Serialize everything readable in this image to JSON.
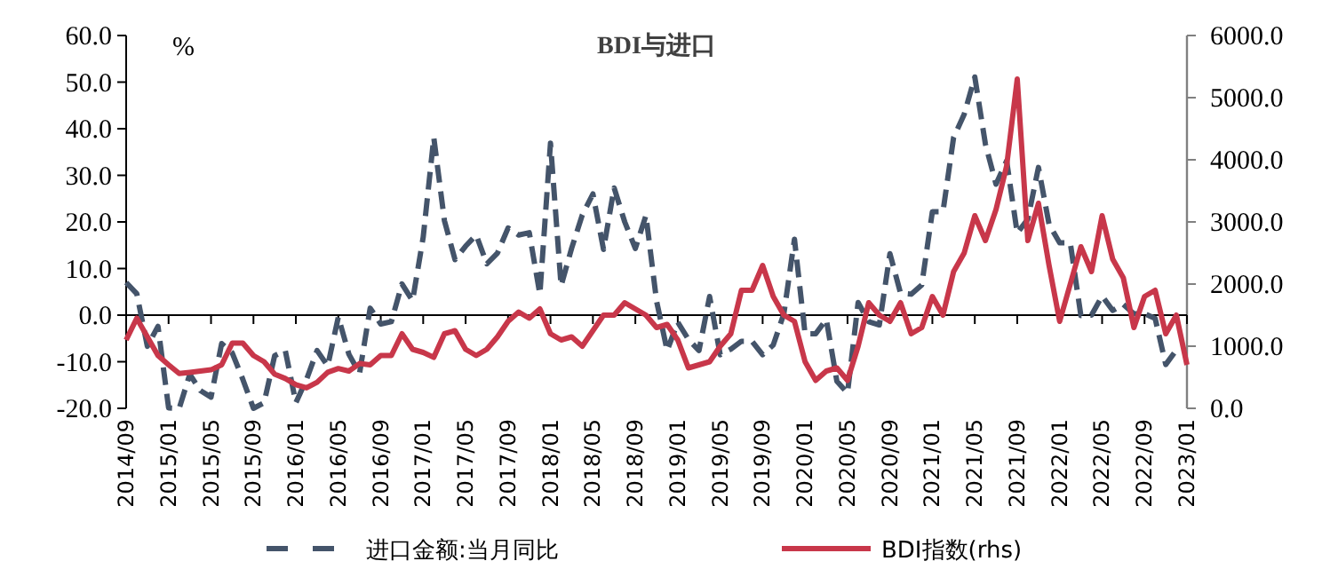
{
  "chart_data": {
    "type": "line",
    "title": "BDI与进口",
    "ylabel": "%",
    "categories": [
      "2014/09",
      null,
      null,
      null,
      "2015/01",
      null,
      null,
      null,
      "2015/05",
      null,
      null,
      null,
      "2015/09",
      null,
      null,
      null,
      "2016/01",
      null,
      null,
      null,
      "2016/05",
      null,
      null,
      null,
      "2016/09",
      null,
      null,
      null,
      "2017/01",
      null,
      null,
      null,
      "2017/05",
      null,
      null,
      null,
      "2017/09",
      null,
      null,
      null,
      "2018/01",
      null,
      null,
      null,
      "2018/05",
      null,
      null,
      null,
      "2018/09",
      null,
      null,
      null,
      "2019/01",
      null,
      null,
      null,
      "2019/05",
      null,
      null,
      null,
      "2019/09",
      null,
      null,
      null,
      "2020/01",
      null,
      null,
      null,
      "2020/05",
      null,
      null,
      null,
      "2020/09",
      null,
      null,
      null,
      "2021/01",
      null,
      null,
      null,
      "2021/05",
      null,
      null,
      null,
      "2021/09",
      null,
      null,
      null,
      "2022/01",
      null,
      null,
      null,
      "2022/05",
      null,
      null,
      null,
      "2022/09",
      null,
      null,
      null,
      "2023/01"
    ],
    "series": [
      {
        "name": "进口金额:当月同比",
        "color": "#44546a",
        "line_style": "dashed",
        "values": [
          7.0,
          4.6,
          -6.7,
          -2.4,
          -19.9,
          -20.0,
          -12.7,
          -16.2,
          -17.6,
          -6.1,
          -8.1,
          -13.8,
          -20.0,
          -18.8,
          -8.7,
          -7.6,
          -18.8,
          -13.8,
          -7.6,
          -10.9,
          -0.4,
          -8.4,
          -12.5,
          1.5,
          -1.9,
          -1.4,
          6.7,
          3.1,
          16.7,
          38.1,
          20.3,
          11.9,
          14.8,
          17.2,
          11.0,
          13.3,
          18.7,
          17.2,
          17.7,
          4.5,
          36.9,
          6.3,
          14.4,
          21.5,
          26.0,
          14.1,
          27.3,
          20.0,
          14.3,
          21.4,
          3.0,
          -7.6,
          -1.5,
          -5.2,
          -7.6,
          4.0,
          -8.5,
          -7.3,
          -5.6,
          -5.6,
          -8.5,
          -6.4,
          0.3,
          16.3,
          -4.0,
          -4.0,
          -0.9,
          -14.2,
          -16.7,
          2.7,
          -1.4,
          -2.1,
          13.2,
          4.7,
          4.5,
          6.5,
          22.2,
          22.2,
          38.1,
          43.1,
          51.1,
          36.7,
          28.1,
          33.1,
          17.6,
          20.6,
          31.7,
          19.5,
          15.5,
          15.5,
          -0.1,
          0.0,
          4.1,
          1.0,
          2.3,
          0.3,
          0.3,
          -0.7,
          -10.6,
          -7.5,
          null
        ]
      },
      {
        "name": "BDI指数(rhs)",
        "color": "#c8374a",
        "line_style": "solid",
        "axis": "y2",
        "values": [
          1100,
          1450,
          1150,
          850,
          700,
          560,
          580,
          600,
          620,
          700,
          1050,
          1050,
          850,
          750,
          550,
          480,
          380,
          330,
          420,
          580,
          640,
          600,
          720,
          700,
          850,
          850,
          1200,
          950,
          900,
          820,
          1200,
          1250,
          950,
          850,
          950,
          1150,
          1400,
          1550,
          1450,
          1600,
          1200,
          1100,
          1150,
          1000,
          1250,
          1500,
          1500,
          1700,
          1600,
          1500,
          1300,
          1350,
          1100,
          650,
          700,
          750,
          1000,
          1200,
          1900,
          1900,
          2300,
          1800,
          1500,
          1400,
          750,
          450,
          600,
          650,
          450,
          1000,
          1700,
          1500,
          1400,
          1700,
          1200,
          1300,
          1800,
          1500,
          2200,
          2500,
          3100,
          2700,
          3200,
          3900,
          5300,
          2700,
          3300,
          2300,
          1400,
          2000,
          2600,
          2200,
          3100,
          2400,
          2100,
          1300,
          1800,
          1900,
          1200,
          1500,
          700
        ]
      }
    ],
    "ylim": [
      -20,
      60
    ],
    "yticks": [
      {
        "value": -20,
        "label": "-20.0"
      },
      {
        "value": -10,
        "label": "-10.0"
      },
      {
        "value": 0,
        "label": "0.0"
      },
      {
        "value": 10,
        "label": "10.0"
      },
      {
        "value": 20,
        "label": "20.0"
      },
      {
        "value": 30,
        "label": "30.0"
      },
      {
        "value": 40,
        "label": "40.0"
      },
      {
        "value": 50,
        "label": "50.0"
      },
      {
        "value": 60,
        "label": "60.0"
      }
    ],
    "y2lim": [
      0,
      6000
    ],
    "y2ticks": [
      {
        "value": 0,
        "label": "0.0"
      },
      {
        "value": 1000,
        "label": "1000.0"
      },
      {
        "value": 2000,
        "label": "2000.0"
      },
      {
        "value": 3000,
        "label": "3000.0"
      },
      {
        "value": 4000,
        "label": "4000.0"
      },
      {
        "value": 5000,
        "label": "5000.0"
      },
      {
        "value": 6000,
        "label": "6000.0"
      }
    ],
    "legend": "bottom"
  }
}
